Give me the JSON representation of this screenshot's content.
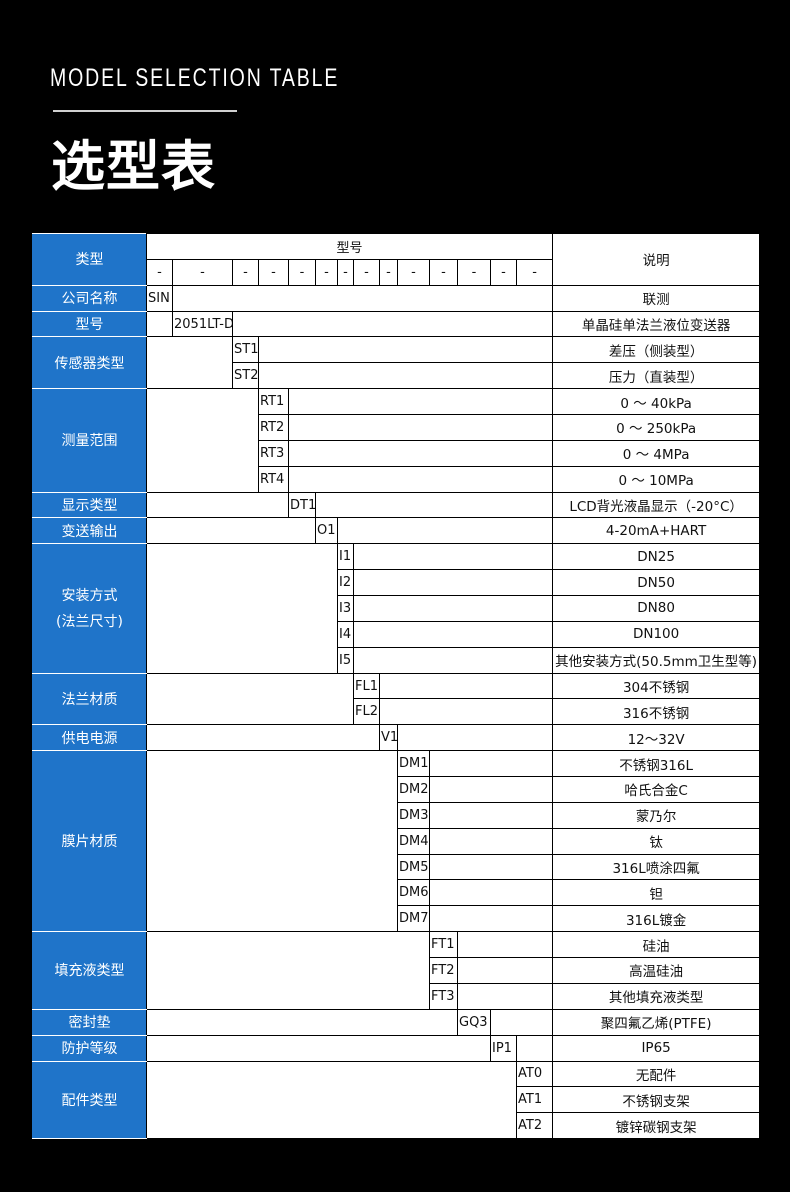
{
  "header": {
    "en_title": "MODEL SELECTION TABLE",
    "cn_title": "选型表"
  },
  "colors": {
    "label_bg": "#1f74c9",
    "page_bg": "#000000"
  },
  "table": {
    "type_header": "类型",
    "model_header": "型号",
    "desc_header": "说明",
    "dash_row": [
      "-",
      "-",
      "-",
      "-",
      "-",
      "-",
      "-",
      "-",
      "-",
      "-",
      "-",
      "-",
      "-",
      "-"
    ],
    "groups": [
      {
        "label": "公司名称",
        "rows": [
          {
            "code": "SIN",
            "desc": "联测"
          }
        ]
      },
      {
        "label": "型号",
        "rows": [
          {
            "code": "2051LT-D",
            "desc": "单晶硅单法兰液位变送器"
          }
        ]
      },
      {
        "label": "传感器类型",
        "rows": [
          {
            "code": "ST1",
            "desc": "差压（侧装型）"
          },
          {
            "code": "ST2",
            "desc": "压力（直装型）"
          }
        ]
      },
      {
        "label": "测量范围",
        "rows": [
          {
            "code": "RT1",
            "desc": "0 ～ 40kPa"
          },
          {
            "code": "RT2",
            "desc": "0 ～ 250kPa"
          },
          {
            "code": "RT3",
            "desc": "0 ～ 4MPa"
          },
          {
            "code": "RT4",
            "desc": "0 ～ 10MPa"
          }
        ]
      },
      {
        "label": "显示类型",
        "rows": [
          {
            "code": "DT1",
            "desc": "LCD背光液晶显示（-20°C）"
          }
        ]
      },
      {
        "label": "变送输出",
        "rows": [
          {
            "code": "O1",
            "desc": "4-20mA+HART"
          }
        ]
      },
      {
        "label": "安装方式",
        "label2": "(法兰尺寸)",
        "rows": [
          {
            "code": "I1",
            "desc": "DN25"
          },
          {
            "code": "I2",
            "desc": "DN50"
          },
          {
            "code": "I3",
            "desc": "DN80"
          },
          {
            "code": "I4",
            "desc": "DN100"
          },
          {
            "code": "I5",
            "desc": "其他安装方式(50.5mm卫生型等)"
          }
        ]
      },
      {
        "label": "法兰材质",
        "rows": [
          {
            "code": "FL1",
            "desc": "304不锈钢"
          },
          {
            "code": "FL2",
            "desc": "316不锈钢"
          }
        ]
      },
      {
        "label": "供电电源",
        "rows": [
          {
            "code": "V1",
            "desc": "12～32V"
          }
        ]
      },
      {
        "label": "膜片材质",
        "rows": [
          {
            "code": "DM1",
            "desc": "不锈钢316L"
          },
          {
            "code": "DM2",
            "desc": "哈氏合金C"
          },
          {
            "code": "DM3",
            "desc": "蒙乃尔"
          },
          {
            "code": "DM4",
            "desc": "钛"
          },
          {
            "code": "DM5",
            "desc": "316L喷涂四氟"
          },
          {
            "code": "DM6",
            "desc": "钽"
          },
          {
            "code": "DM7",
            "desc": "316L镀金"
          }
        ]
      },
      {
        "label": "填充液类型",
        "rows": [
          {
            "code": "FT1",
            "desc": "硅油"
          },
          {
            "code": "FT2",
            "desc": "高温硅油"
          },
          {
            "code": "FT3",
            "desc": "其他填充液类型"
          }
        ]
      },
      {
        "label": "密封垫",
        "rows": [
          {
            "code": "GQ3",
            "desc": "聚四氟乙烯(PTFE)"
          }
        ]
      },
      {
        "label": "防护等级",
        "rows": [
          {
            "code": "IP1",
            "desc": "IP65"
          }
        ]
      },
      {
        "label": "配件类型",
        "rows": [
          {
            "code": "AT0",
            "desc": "无配件"
          },
          {
            "code": "AT1",
            "desc": "不锈钢支架"
          },
          {
            "code": "AT2",
            "desc": "镀锌碳钢支架"
          }
        ]
      }
    ]
  }
}
